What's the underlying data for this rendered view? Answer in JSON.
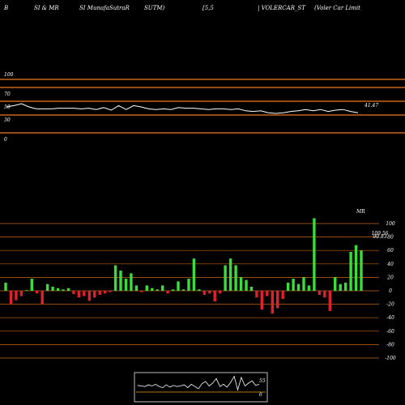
{
  "header": {
    "items": [
      "B",
      "SI & MR",
      "SI MunafaSutraR",
      "SUTM)",
      "[5,5",
      "| VOLERCAR_ST",
      "(Voler Car Limit"
    ]
  },
  "chart_data": [
    {
      "type": "line",
      "name": "RSI panel",
      "yticks": [
        100,
        70,
        50,
        30,
        0
      ],
      "ylim": [
        0,
        100
      ],
      "last_value_label": "41.47",
      "values": [
        50,
        52,
        55,
        50,
        47,
        47,
        47,
        48,
        48,
        48,
        47,
        48,
        46,
        49,
        45,
        52,
        46,
        52,
        50,
        47,
        46,
        47,
        46,
        49,
        48,
        48,
        47,
        46,
        47,
        47,
        46,
        47,
        44,
        43,
        44,
        41,
        40,
        41,
        43,
        44,
        46,
        44,
        46,
        43,
        45,
        46,
        43,
        41
      ]
    },
    {
      "type": "bar",
      "name": "MRSI panel",
      "title": "MR",
      "yticks": [
        100,
        80,
        60,
        40,
        20,
        0,
        -20,
        -40,
        -60,
        -80,
        -100
      ],
      "ylim": [
        -100,
        100
      ],
      "annotations": [
        "109.56",
        "90.83"
      ],
      "values": [
        12,
        -20,
        -14,
        -8,
        1,
        18,
        -4,
        -20,
        10,
        6,
        4,
        2,
        4,
        -5,
        -10,
        -8,
        -15,
        -10,
        -6,
        -4,
        -2,
        38,
        30,
        18,
        26,
        8,
        -2,
        8,
        4,
        2,
        8,
        -4,
        2,
        14,
        2,
        18,
        48,
        2,
        -6,
        -4,
        -16,
        -4,
        38,
        48,
        38,
        20,
        16,
        6,
        -10,
        -28,
        -8,
        -34,
        -26,
        -12,
        12,
        18,
        10,
        20,
        8,
        108,
        -6,
        -10,
        -30,
        20,
        10,
        12,
        58,
        68,
        60
      ]
    },
    {
      "type": "line",
      "name": "mini panel",
      "yticks": [
        55,
        6
      ],
      "values": [
        26,
        25,
        24,
        27,
        25,
        28,
        24,
        22,
        27,
        23,
        26,
        24,
        25,
        27,
        22,
        28,
        24,
        20,
        29,
        33,
        25,
        30,
        38,
        24,
        28,
        23,
        31,
        42,
        18,
        40,
        25,
        30,
        34,
        26,
        28
      ]
    }
  ],
  "colors": {
    "background": "#000000",
    "grid": "#c86414",
    "rsi_line": "#ffffff",
    "bar_up": "#3cdc3c",
    "bar_down": "#e0202a",
    "mini_line_1": "#ffffff",
    "mini_line_2": "#f0a020",
    "frame": "#bbbbbb"
  }
}
